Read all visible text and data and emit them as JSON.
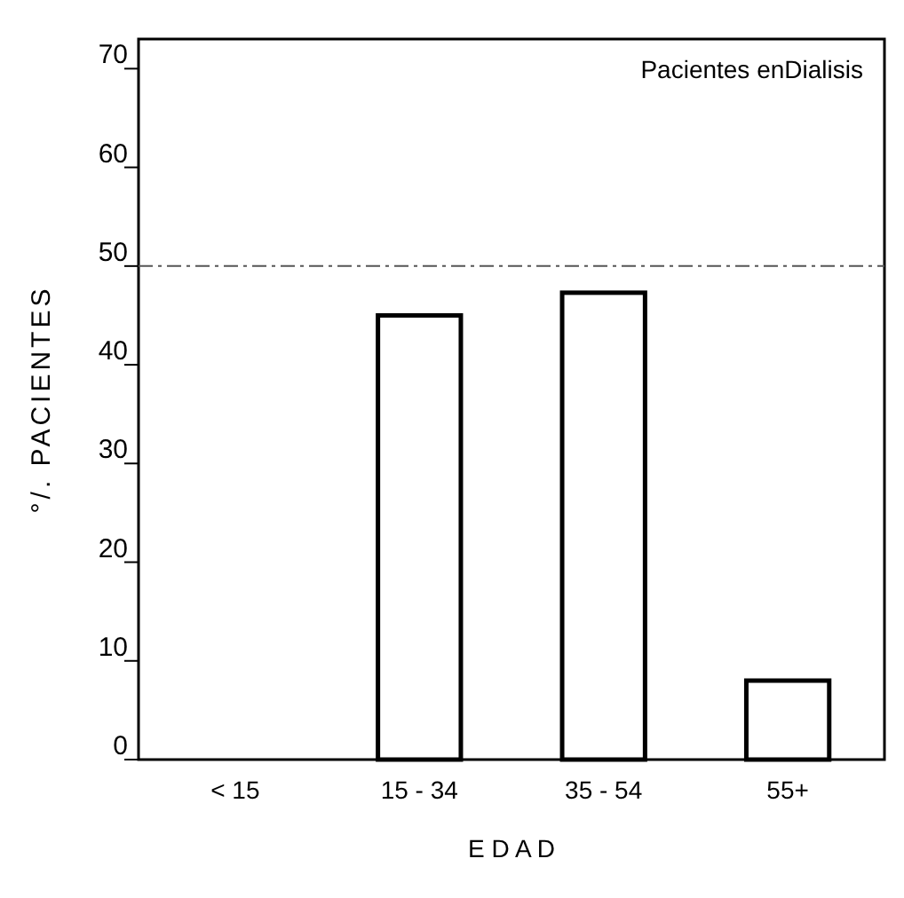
{
  "chart_data": {
    "type": "bar",
    "title": "Pacientes enDialisis",
    "xlabel": "E D A D",
    "ylabel": "°/. PACIENTES",
    "categories": [
      "< 15",
      "15 - 34",
      "35 - 54",
      "55+"
    ],
    "values": [
      0,
      45,
      47.3,
      8
    ],
    "color": "#000000",
    "ylim": [
      0,
      73
    ],
    "yticks": [
      0,
      10,
      20,
      30,
      40,
      50,
      60,
      70
    ],
    "grid": false,
    "ref_lines": [
      {
        "axis": "y",
        "value": 50,
        "line_style": "dashdot",
        "color": "#555555"
      }
    ]
  }
}
